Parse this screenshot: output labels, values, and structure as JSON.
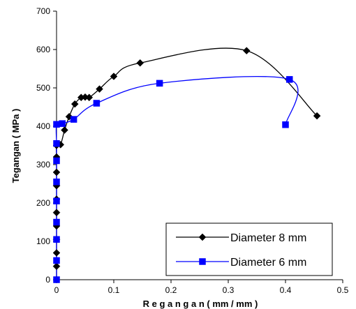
{
  "chart_data": {
    "type": "scatter",
    "xlabel": "R e g a n g a n  ( mm  /  mm )",
    "ylabel": "Tegangan ( MPa )",
    "xlim": [
      0,
      0.5
    ],
    "ylim": [
      0,
      700
    ],
    "x_ticks": [
      "0",
      "0.1",
      "0.2",
      "0.3",
      "0.4",
      "0.5"
    ],
    "y_ticks": [
      "0",
      "100",
      "200",
      "300",
      "400",
      "500",
      "600",
      "700"
    ],
    "grid": false,
    "legend_position": "bottom-right",
    "series": [
      {
        "name": "Diameter 8 mm",
        "color": "#000000",
        "marker": "diamond",
        "x": [
          0,
          0,
          0,
          0,
          0,
          0,
          0,
          0,
          0,
          0,
          0,
          0.007,
          0.014,
          0.022,
          0.032,
          0.043,
          0.05,
          0.057,
          0.075,
          0.1,
          0.146,
          0.332,
          0.455
        ],
        "y": [
          0,
          35,
          70,
          105,
          140,
          175,
          210,
          245,
          280,
          320,
          350,
          352,
          390,
          425,
          458,
          475,
          476,
          475,
          497,
          530,
          565,
          597,
          427
        ]
      },
      {
        "name": "Diameter 6 mm",
        "color": "#0000ff",
        "marker": "square",
        "x": [
          0,
          0,
          0,
          0,
          0,
          0,
          0,
          0,
          0,
          0.01,
          0.03,
          0.07,
          0.18,
          0.407,
          0.4
        ],
        "y": [
          0,
          50,
          105,
          150,
          205,
          255,
          310,
          355,
          405,
          407,
          418,
          460,
          512,
          522,
          404
        ]
      }
    ]
  }
}
